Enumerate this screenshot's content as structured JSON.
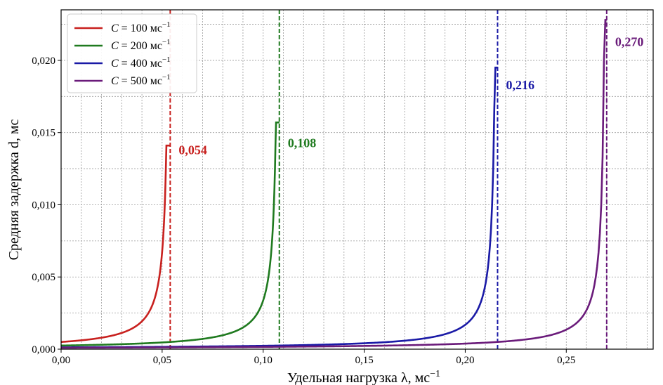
{
  "chart_data": {
    "type": "line",
    "xlabel": "Удельная нагрузка λ, мс",
    "xlabel_sup": "−1",
    "ylabel": "Средняя задержка d, мс",
    "xlim": [
      0,
      0.293
    ],
    "ylim": [
      0,
      0.0235
    ],
    "x_ticks": [
      0.0,
      0.05,
      0.1,
      0.15,
      0.2,
      0.25
    ],
    "x_tick_labels": [
      "0,00",
      "0,05",
      "0,10",
      "0,15",
      "0,20",
      "0,25"
    ],
    "y_ticks": [
      0.0,
      0.005,
      0.01,
      0.015,
      0.02
    ],
    "y_tick_labels": [
      "0,000",
      "0,005",
      "0,010",
      "0,015",
      "0,020"
    ],
    "grid": true,
    "legend_position": "top-left",
    "series": [
      {
        "name": "C = 100 мс",
        "legend_label": {
          "c": "C",
          "eq": " = 100 мс",
          "sup": "−1"
        },
        "color": "#c8201e",
        "C": 100,
        "asymptote": 0.054,
        "annotation": "0,054"
      },
      {
        "name": "C = 200 мс",
        "legend_label": {
          "c": "C",
          "eq": " = 200 мс",
          "sup": "−1"
        },
        "color": "#1f7a1f",
        "C": 200,
        "asymptote": 0.108,
        "annotation": "0,108"
      },
      {
        "name": "C = 400 мс",
        "legend_label": {
          "c": "C",
          "eq": " = 400 мс",
          "sup": "−1"
        },
        "color": "#1a1aa6",
        "C": 400,
        "asymptote": 0.216,
        "annotation": "0,216"
      },
      {
        "name": "C = 500 мс",
        "legend_label": {
          "c": "C",
          "eq": " = 500 мс",
          "sup": "−1"
        },
        "color": "#6a1b7a",
        "C": 500,
        "asymptote": 0.27,
        "annotation": "0,270"
      }
    ]
  }
}
